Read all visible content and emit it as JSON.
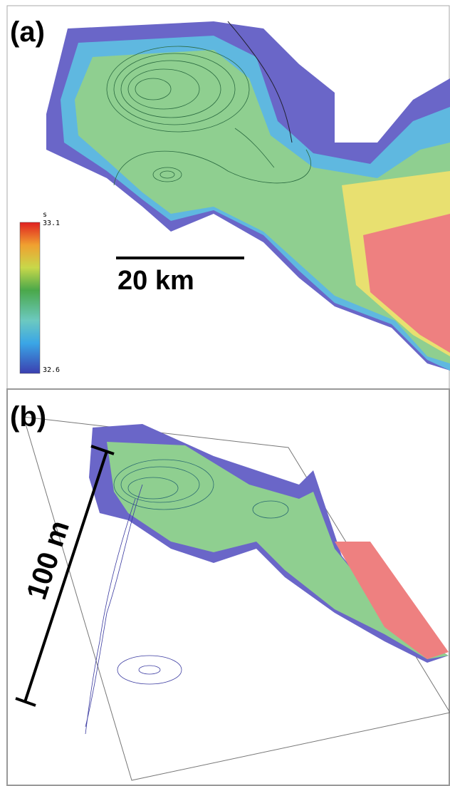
{
  "panel_a": {
    "label": "(a)",
    "colorbar": {
      "variable": "s",
      "max_label": "33.1",
      "min_label": "32.6"
    },
    "scale_bar": "20 km"
  },
  "panel_b": {
    "label": "(b)",
    "scale_bar": "100 m"
  }
}
